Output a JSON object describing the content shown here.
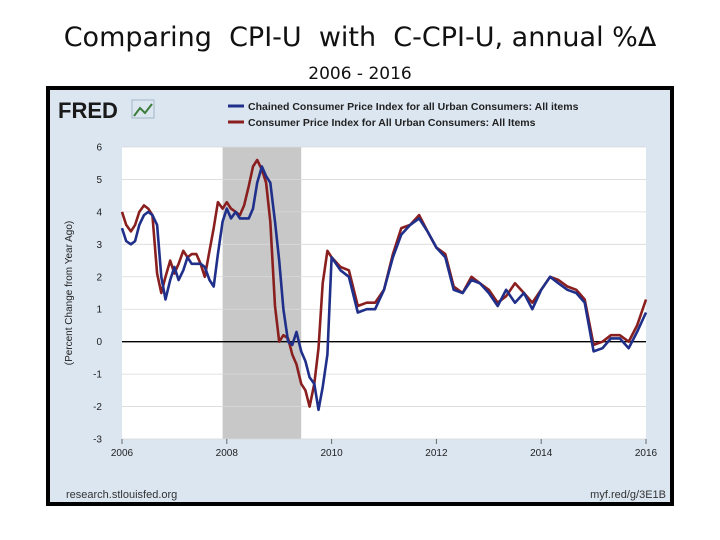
{
  "slide": {
    "title": "Comparing  CPI-U  with  C-CPI-U, annual %Δ",
    "subtitle": "2006 - 2016"
  },
  "fred": {
    "logo": "FRED",
    "source_left": "research.stlouisfed.org",
    "source_right": "myf.red/g/3E1B"
  },
  "chart_data": {
    "type": "line",
    "ylabel": "(Percent Change from Year Ago)",
    "xlim": [
      2006,
      2016
    ],
    "ylim": [
      -3,
      6
    ],
    "x_ticks": [
      "2006",
      "2008",
      "2010",
      "2012",
      "2014",
      "2016"
    ],
    "y_ticks": [
      "6",
      "5",
      "4",
      "3",
      "2",
      "1",
      "0",
      "-1",
      "-2",
      "-3"
    ],
    "grid": "horizontal",
    "legend": "top",
    "recession": [
      2007.92,
      2009.42
    ],
    "series": [
      {
        "name": "Chained Consumer Price Index for all Urban Consumers: All items",
        "color": "#1f2f8a",
        "x": [
          2006.0,
          2006.08,
          2006.17,
          2006.25,
          2006.33,
          2006.42,
          2006.5,
          2006.58,
          2006.67,
          2006.75,
          2006.83,
          2006.92,
          2007.0,
          2007.08,
          2007.17,
          2007.25,
          2007.33,
          2007.42,
          2007.5,
          2007.58,
          2007.67,
          2007.75,
          2007.83,
          2007.92,
          2008.0,
          2008.08,
          2008.17,
          2008.25,
          2008.33,
          2008.42,
          2008.5,
          2008.58,
          2008.67,
          2008.75,
          2008.83,
          2008.92,
          2009.0,
          2009.08,
          2009.17,
          2009.25,
          2009.33,
          2009.42,
          2009.5,
          2009.58,
          2009.67,
          2009.75,
          2009.83,
          2009.92,
          2010.0,
          2010.17,
          2010.33,
          2010.5,
          2010.67,
          2010.83,
          2011.0,
          2011.17,
          2011.33,
          2011.5,
          2011.67,
          2011.83,
          2012.0,
          2012.17,
          2012.33,
          2012.5,
          2012.67,
          2012.83,
          2013.0,
          2013.17,
          2013.33,
          2013.5,
          2013.67,
          2013.83,
          2014.0,
          2014.17,
          2014.33,
          2014.5,
          2014.67,
          2014.83,
          2015.0,
          2015.17,
          2015.33,
          2015.5,
          2015.67,
          2015.83,
          2016.0
        ],
        "values": [
          3.5,
          3.1,
          3.0,
          3.1,
          3.6,
          3.9,
          4.0,
          3.9,
          3.6,
          2.0,
          1.3,
          1.9,
          2.3,
          1.9,
          2.2,
          2.6,
          2.4,
          2.4,
          2.4,
          2.3,
          1.9,
          1.7,
          2.7,
          3.7,
          4.1,
          3.8,
          4.0,
          3.8,
          3.8,
          3.8,
          4.1,
          4.9,
          5.4,
          5.1,
          4.9,
          3.7,
          2.5,
          1.0,
          0.0,
          -0.1,
          0.3,
          -0.3,
          -0.6,
          -1.1,
          -1.3,
          -2.1,
          -1.4,
          -0.4,
          2.6,
          2.2,
          2.0,
          0.9,
          1.0,
          1.0,
          1.6,
          2.6,
          3.3,
          3.6,
          3.8,
          3.4,
          2.9,
          2.6,
          1.6,
          1.5,
          1.9,
          1.8,
          1.5,
          1.1,
          1.6,
          1.2,
          1.5,
          1.0,
          1.6,
          2.0,
          1.8,
          1.6,
          1.5,
          1.2,
          -0.3,
          -0.2,
          0.1,
          0.1,
          -0.2,
          0.3,
          0.9
        ]
      },
      {
        "name": "Consumer Price Index for All Urban Consumers: All Items",
        "color": "#8a1f1f",
        "x": [
          2006.0,
          2006.08,
          2006.17,
          2006.25,
          2006.33,
          2006.42,
          2006.5,
          2006.58,
          2006.67,
          2006.75,
          2006.83,
          2006.92,
          2007.0,
          2007.08,
          2007.17,
          2007.25,
          2007.33,
          2007.42,
          2007.5,
          2007.58,
          2007.67,
          2007.75,
          2007.83,
          2007.92,
          2008.0,
          2008.08,
          2008.17,
          2008.25,
          2008.33,
          2008.42,
          2008.5,
          2008.58,
          2008.67,
          2008.75,
          2008.83,
          2008.92,
          2009.0,
          2009.08,
          2009.17,
          2009.25,
          2009.33,
          2009.42,
          2009.5,
          2009.58,
          2009.67,
          2009.75,
          2009.83,
          2009.92,
          2010.0,
          2010.17,
          2010.33,
          2010.5,
          2010.67,
          2010.83,
          2011.0,
          2011.17,
          2011.33,
          2011.5,
          2011.67,
          2011.83,
          2012.0,
          2012.17,
          2012.33,
          2012.5,
          2012.67,
          2012.83,
          2013.0,
          2013.17,
          2013.33,
          2013.5,
          2013.67,
          2013.83,
          2014.0,
          2014.17,
          2014.33,
          2014.5,
          2014.67,
          2014.83,
          2015.0,
          2015.17,
          2015.33,
          2015.5,
          2015.67,
          2015.83,
          2016.0
        ],
        "values": [
          4.0,
          3.6,
          3.4,
          3.6,
          4.0,
          4.2,
          4.1,
          3.9,
          2.1,
          1.5,
          2.0,
          2.5,
          2.1,
          2.4,
          2.8,
          2.6,
          2.7,
          2.7,
          2.4,
          2.0,
          2.8,
          3.5,
          4.3,
          4.1,
          4.3,
          4.1,
          4.0,
          3.9,
          4.2,
          4.8,
          5.4,
          5.6,
          5.3,
          4.9,
          3.7,
          1.1,
          0.0,
          0.2,
          0.1,
          -0.4,
          -0.7,
          -1.3,
          -1.5,
          -2.0,
          -1.3,
          -0.2,
          1.8,
          2.8,
          2.6,
          2.3,
          2.2,
          1.1,
          1.2,
          1.2,
          1.6,
          2.7,
          3.5,
          3.6,
          3.9,
          3.4,
          2.9,
          2.7,
          1.7,
          1.5,
          2.0,
          1.8,
          1.6,
          1.2,
          1.4,
          1.8,
          1.5,
          1.2,
          1.6,
          2.0,
          1.9,
          1.7,
          1.6,
          1.3,
          -0.1,
          0.0,
          0.2,
          0.2,
          0.0,
          0.5,
          1.3
        ]
      }
    ]
  }
}
